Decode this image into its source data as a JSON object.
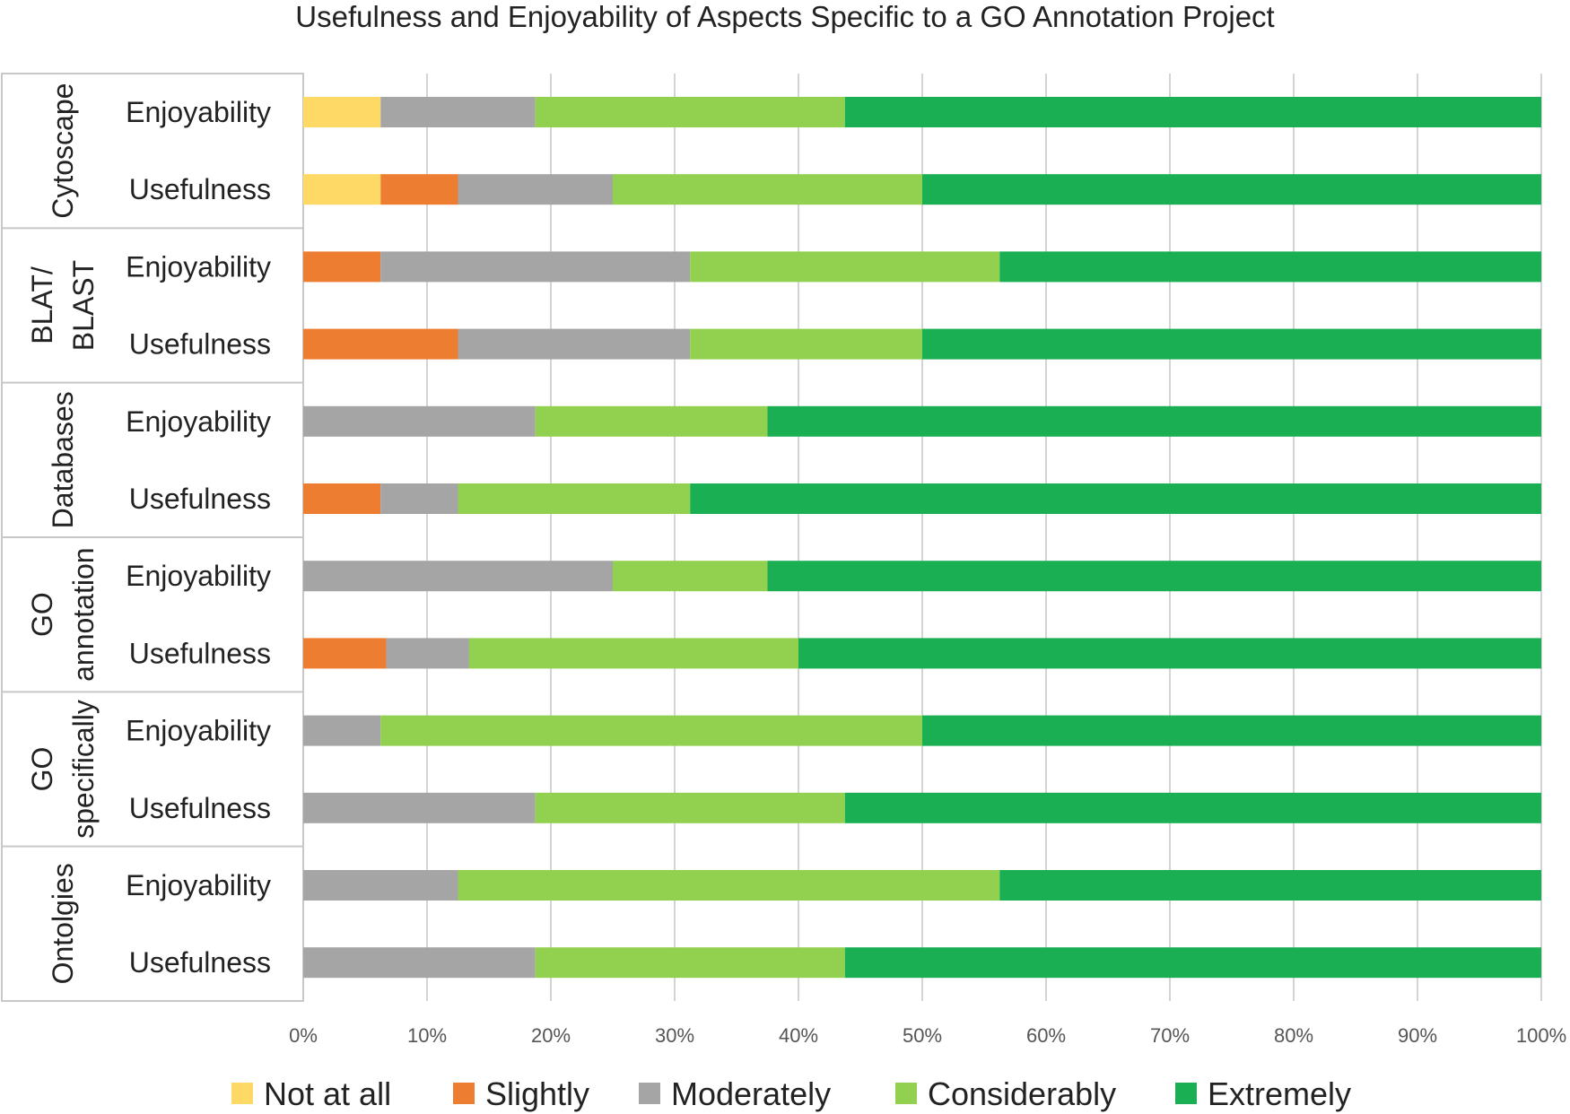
{
  "chart_data": {
    "type": "bar",
    "orientation": "horizontal",
    "stacked": "percent",
    "title": "Usefulness and Enjoyability of Aspects Specific to a GO Annotation Project",
    "xlabel": "",
    "ylabel": "",
    "xlim": [
      0,
      100
    ],
    "x_ticks": [
      "0%",
      "10%",
      "20%",
      "30%",
      "40%",
      "50%",
      "60%",
      "70%",
      "80%",
      "90%",
      "100%"
    ],
    "grid": true,
    "legend_position": "bottom",
    "groups": [
      {
        "lines": [
          "Cytoscape"
        ],
        "rows": [
          "Enjoyability",
          "Usefulness"
        ]
      },
      {
        "lines": [
          "BLAT/",
          "BLAST"
        ],
        "rows": [
          "Enjoyability",
          "Usefulness"
        ]
      },
      {
        "lines": [
          "Databases"
        ],
        "rows": [
          "Enjoyability",
          "Usefulness"
        ]
      },
      {
        "lines": [
          "GO",
          "annotation"
        ],
        "rows": [
          "Enjoyability",
          "Usefulness"
        ]
      },
      {
        "lines": [
          "GO",
          "specifically"
        ],
        "rows": [
          "Enjoyability",
          "Usefulness"
        ]
      },
      {
        "lines": [
          "Ontolgies"
        ],
        "rows": [
          "Enjoyability",
          "Usefulness"
        ]
      }
    ],
    "series": [
      {
        "name": "Not at all",
        "color": "#FFD966",
        "values": [
          6.25,
          6.25,
          0,
          0,
          0,
          0,
          0,
          0,
          0,
          0,
          0,
          0
        ]
      },
      {
        "name": "Slightly",
        "color": "#ED7D31",
        "values": [
          0,
          6.25,
          6.25,
          12.5,
          0,
          6.25,
          0,
          6.7,
          0,
          0,
          0,
          0
        ]
      },
      {
        "name": "Moderately",
        "color": "#A5A5A5",
        "values": [
          12.5,
          12.5,
          25,
          18.75,
          18.75,
          6.25,
          25,
          6.7,
          6.25,
          18.75,
          12.5,
          18.75
        ]
      },
      {
        "name": "Considerably",
        "color": "#92D050",
        "values": [
          25,
          25,
          25,
          18.75,
          18.75,
          18.75,
          12.5,
          26.6,
          43.75,
          25,
          43.75,
          25
        ]
      },
      {
        "name": "Extremely",
        "color": "#1BAF54",
        "values": [
          56.25,
          50,
          43.75,
          50,
          62.5,
          68.75,
          62.5,
          60,
          50,
          56.25,
          43.75,
          56.25
        ]
      }
    ]
  }
}
